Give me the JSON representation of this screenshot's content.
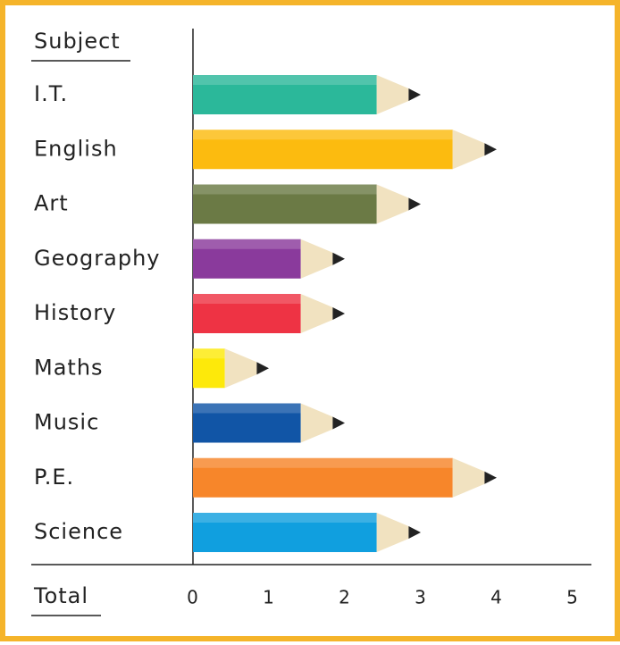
{
  "chart_data": {
    "type": "bar",
    "orientation": "horizontal",
    "y_label": "Subject",
    "x_label": "Total",
    "categories": [
      "I.T.",
      "English",
      "Art",
      "Geography",
      "History",
      "Maths",
      "Music",
      "P.E.",
      "Science"
    ],
    "values": [
      3,
      4,
      3,
      2,
      2,
      1,
      2,
      4,
      3
    ],
    "colors": [
      "#2bb89a",
      "#fcbb0f",
      "#6b7a45",
      "#8a3a9c",
      "#ee3344",
      "#fde90a",
      "#1155a6",
      "#f7862a",
      "#109fdf"
    ],
    "xlim": [
      0,
      5
    ],
    "xticks": [
      0,
      1,
      2,
      3,
      4,
      5
    ]
  }
}
